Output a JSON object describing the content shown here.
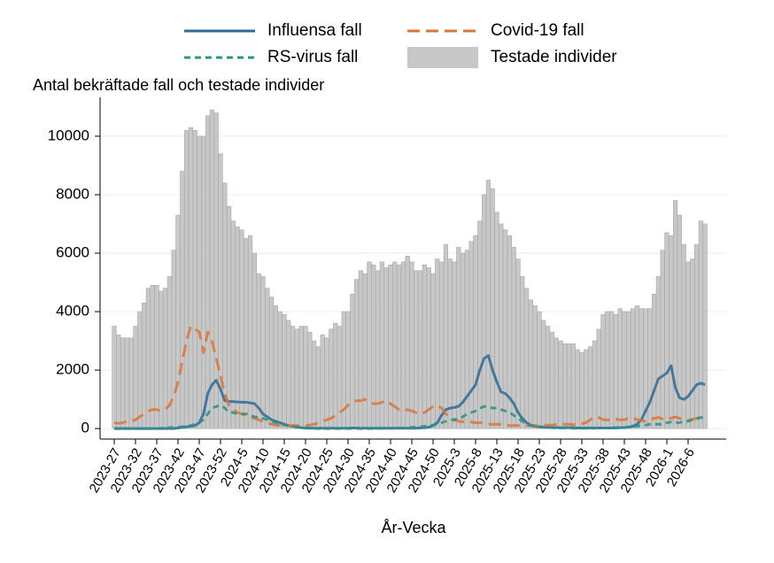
{
  "chart_data": {
    "type": "bar",
    "y_label": "Antal bekräftade fall och testade individer",
    "x_label": "År-Vecka",
    "ylim": [
      -360,
      11330
    ],
    "yticks": [
      0,
      2000,
      4000,
      6000,
      8000,
      10000
    ],
    "grid": true,
    "categories": [
      "2023-27",
      null,
      null,
      null,
      null,
      "2023-32",
      null,
      null,
      null,
      null,
      "2023-37",
      null,
      null,
      null,
      null,
      "2023-42",
      null,
      null,
      null,
      null,
      "2023-47",
      null,
      null,
      null,
      null,
      "2023-52",
      null,
      null,
      null,
      null,
      "2024-5",
      null,
      null,
      null,
      null,
      "2024-10",
      null,
      null,
      null,
      null,
      "2024-15",
      null,
      null,
      null,
      null,
      "2024-20",
      null,
      null,
      null,
      null,
      "2024-25",
      null,
      null,
      null,
      null,
      "2024-30",
      null,
      null,
      null,
      null,
      "2024-35",
      null,
      null,
      null,
      null,
      "2024-40",
      null,
      null,
      null,
      null,
      "2024-45",
      null,
      null,
      null,
      null,
      "2024-50",
      null,
      null,
      null,
      null,
      "2025-3",
      null,
      null,
      null,
      null,
      "2025-8",
      null,
      null,
      null,
      null,
      "2025-13",
      null,
      null,
      null,
      null,
      "2025-18",
      null,
      null,
      null,
      null,
      "2025-23",
      null,
      null,
      null,
      null,
      "2025-28",
      null,
      null,
      null,
      null,
      "2025-33",
      null,
      null,
      null,
      null,
      "2025-38",
      null,
      null,
      null,
      null,
      "2025-43",
      null,
      null,
      null,
      null,
      "2025-48",
      null,
      null,
      null,
      null,
      "2026-1",
      null,
      null,
      null,
      null,
      "2026-6",
      null,
      null,
      null,
      null
    ],
    "series": [
      {
        "name": "Influensa fall",
        "type": "line",
        "color": "#2e6b97",
        "dash": "solid",
        "values": [
          0,
          0,
          0,
          0,
          0,
          0,
          0,
          0,
          0,
          0,
          0,
          0,
          0,
          0,
          0,
          20,
          40,
          60,
          80,
          100,
          200,
          500,
          1200,
          1500,
          1650,
          1350,
          950,
          930,
          920,
          910,
          900,
          900,
          880,
          850,
          700,
          500,
          400,
          300,
          250,
          200,
          150,
          100,
          80,
          50,
          30,
          20,
          10,
          10,
          10,
          10,
          10,
          10,
          10,
          10,
          10,
          10,
          20,
          20,
          10,
          10,
          10,
          10,
          10,
          10,
          10,
          10,
          10,
          10,
          10,
          10,
          10,
          10,
          20,
          30,
          50,
          100,
          200,
          450,
          650,
          700,
          720,
          760,
          900,
          1100,
          1300,
          1500,
          2000,
          2400,
          2500,
          2000,
          1600,
          1250,
          1200,
          1050,
          850,
          550,
          350,
          200,
          120,
          80,
          60,
          50,
          40,
          30,
          30,
          30,
          30,
          30,
          30,
          20,
          20,
          20,
          20,
          20,
          20,
          20,
          20,
          20,
          20,
          30,
          30,
          50,
          80,
          150,
          300,
          600,
          900,
          1300,
          1700,
          1800,
          1900,
          2150,
          1400,
          1050,
          1000,
          1100,
          1300,
          1500,
          1550,
          1500
        ]
      },
      {
        "name": "Covid-19 fall",
        "type": "line",
        "color": "#d9773a",
        "dash": "long",
        "values": [
          200,
          180,
          200,
          250,
          250,
          300,
          400,
          500,
          600,
          650,
          650,
          600,
          650,
          800,
          1100,
          1600,
          2300,
          3000,
          3500,
          3400,
          3300,
          2600,
          3300,
          3000,
          2400,
          1800,
          1200,
          800,
          650,
          550,
          500,
          450,
          400,
          350,
          300,
          250,
          200,
          150,
          120,
          100,
          100,
          100,
          100,
          100,
          100,
          100,
          120,
          150,
          200,
          250,
          300,
          350,
          450,
          550,
          650,
          800,
          900,
          950,
          950,
          1000,
          900,
          850,
          850,
          900,
          950,
          850,
          750,
          650,
          600,
          650,
          600,
          550,
          500,
          550,
          650,
          750,
          800,
          700,
          500,
          350,
          300,
          250,
          230,
          220,
          220,
          200,
          200,
          180,
          150,
          150,
          150,
          150,
          120,
          100,
          100,
          100,
          100,
          100,
          100,
          100,
          100,
          100,
          120,
          120,
          140,
          150,
          150,
          150,
          130,
          150,
          170,
          200,
          300,
          400,
          380,
          300,
          300,
          280,
          320,
          300,
          300,
          350,
          380,
          300,
          280,
          250,
          300,
          350,
          380,
          330,
          380,
          350,
          400,
          350,
          300,
          280,
          320,
          350,
          350,
          340
        ]
      },
      {
        "name": "RS-virus fall",
        "type": "line",
        "color": "#2a9480",
        "dash": "short",
        "values": [
          0,
          0,
          0,
          0,
          0,
          0,
          0,
          0,
          0,
          0,
          0,
          10,
          20,
          30,
          40,
          50,
          60,
          80,
          100,
          150,
          200,
          300,
          500,
          700,
          750,
          800,
          700,
          550,
          550,
          500,
          500,
          500,
          450,
          400,
          380,
          350,
          300,
          250,
          200,
          150,
          120,
          100,
          80,
          50,
          30,
          20,
          10,
          10,
          0,
          0,
          0,
          0,
          0,
          0,
          0,
          0,
          0,
          0,
          0,
          0,
          0,
          0,
          0,
          10,
          10,
          10,
          10,
          20,
          20,
          30,
          40,
          50,
          60,
          80,
          100,
          120,
          150,
          200,
          250,
          300,
          300,
          350,
          400,
          500,
          550,
          600,
          700,
          750,
          750,
          700,
          700,
          650,
          600,
          550,
          450,
          350,
          250,
          150,
          100,
          80,
          60,
          50,
          40,
          30,
          20,
          20,
          20,
          20,
          10,
          10,
          10,
          10,
          10,
          10,
          20,
          20,
          20,
          30,
          30,
          30,
          40,
          50,
          60,
          80,
          100,
          120,
          150,
          150,
          150,
          150,
          200,
          220,
          200,
          200,
          250,
          250,
          300,
          350,
          380,
          370
        ]
      },
      {
        "name": "Testade individer",
        "type": "bar",
        "color": "#c8c8c8",
        "values": [
          3500,
          3200,
          3100,
          3100,
          3100,
          3500,
          4000,
          4300,
          4800,
          4900,
          4900,
          4700,
          4800,
          5200,
          6100,
          7300,
          8800,
          10200,
          10300,
          10200,
          10000,
          10000,
          10700,
          10900,
          10800,
          9400,
          8400,
          7600,
          7100,
          6900,
          6800,
          6500,
          6600,
          6000,
          5300,
          5200,
          4800,
          4500,
          4200,
          4000,
          3900,
          3700,
          3500,
          3400,
          3500,
          3500,
          3300,
          3000,
          2800,
          3200,
          3100,
          3400,
          3600,
          3500,
          4000,
          4000,
          4600,
          5100,
          5400,
          5300,
          5700,
          5600,
          5400,
          5700,
          5500,
          5600,
          5700,
          5600,
          5700,
          5900,
          5700,
          5400,
          5400,
          5600,
          5500,
          5300,
          5800,
          5700,
          6300,
          5800,
          5700,
          6200,
          6000,
          6100,
          6400,
          6600,
          7100,
          8000,
          8500,
          8200,
          7400,
          7000,
          6800,
          6600,
          6200,
          5800,
          5200,
          4800,
          4400,
          4200,
          4000,
          3700,
          3500,
          3300,
          3100,
          3000,
          2900,
          2900,
          2900,
          2700,
          2600,
          2700,
          2800,
          3000,
          3400,
          3900,
          4000,
          4000,
          3900,
          4100,
          4000,
          4000,
          4100,
          4200,
          4100,
          4100,
          4100,
          4600,
          5200,
          6100,
          6700,
          6600,
          7800,
          7300,
          6300,
          5700,
          5800,
          6300,
          7100,
          7000
        ]
      }
    ]
  }
}
